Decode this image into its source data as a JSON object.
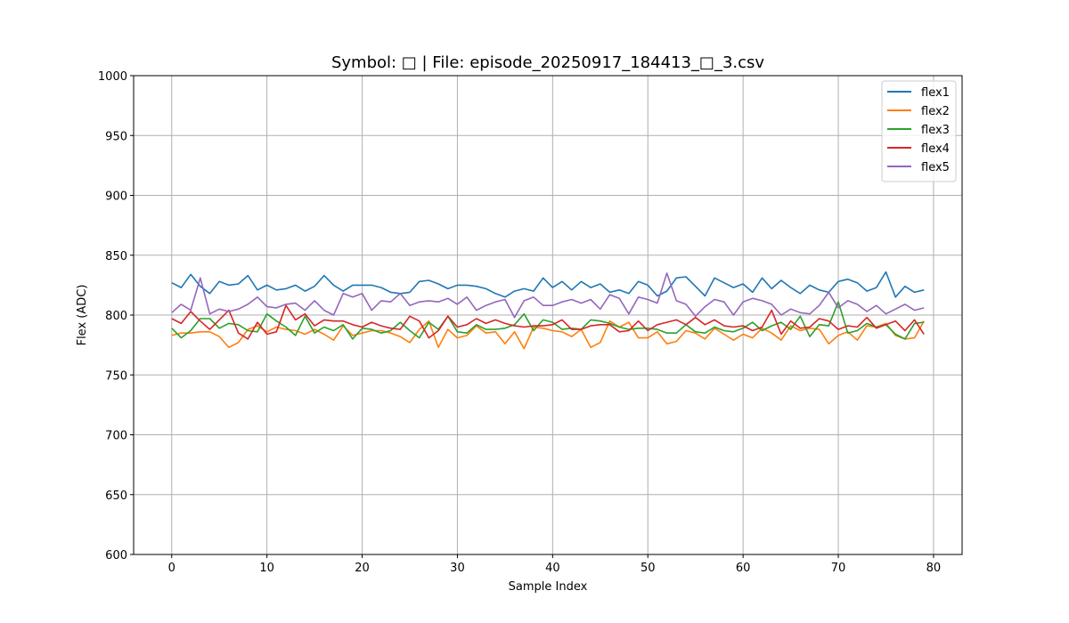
{
  "chart_data": {
    "type": "line",
    "title": "Symbol: □ | File: episode_20250917_184413_□_3.csv",
    "xlabel": "Sample Index",
    "ylabel": "Flex (ADC)",
    "xlim": [
      -4,
      83
    ],
    "ylim": [
      600,
      1000
    ],
    "xticks": [
      0,
      10,
      20,
      30,
      40,
      50,
      60,
      70,
      80
    ],
    "yticks": [
      600,
      650,
      700,
      750,
      800,
      850,
      900,
      950,
      1000
    ],
    "grid": true,
    "legend_position": "top-right",
    "x": [
      0,
      1,
      2,
      3,
      4,
      5,
      6,
      7,
      8,
      9,
      10,
      11,
      12,
      13,
      14,
      15,
      16,
      17,
      18,
      19,
      20,
      21,
      22,
      23,
      24,
      25,
      26,
      27,
      28,
      29,
      30,
      31,
      32,
      33,
      34,
      35,
      36,
      37,
      38,
      39,
      40,
      41,
      42,
      43,
      44,
      45,
      46,
      47,
      48,
      49,
      50,
      51,
      52,
      53,
      54,
      55,
      56,
      57,
      58,
      59,
      60,
      61,
      62,
      63,
      64,
      65,
      66,
      67,
      68,
      69,
      70,
      71,
      72,
      73,
      74,
      75,
      76,
      77,
      78,
      79
    ],
    "series": [
      {
        "name": "flex1",
        "color": "#1f77b4",
        "values": [
          827,
          823,
          834,
          824,
          818,
          828,
          825,
          826,
          833,
          821,
          825,
          821,
          822,
          825,
          820,
          824,
          833,
          825,
          820,
          825,
          825,
          825,
          823,
          819,
          818,
          819,
          828,
          829,
          826,
          822,
          825,
          825,
          824,
          822,
          818,
          815,
          820,
          822,
          820,
          831,
          823,
          828,
          821,
          828,
          823,
          826,
          819,
          821,
          818,
          828,
          825,
          816,
          820,
          831,
          832,
          824,
          816,
          831,
          827,
          823,
          826,
          819,
          831,
          822,
          829,
          823,
          818,
          825,
          821,
          819,
          828,
          830,
          827,
          820,
          823,
          836,
          815,
          824,
          819,
          821
        ]
      },
      {
        "name": "flex2",
        "color": "#ff7f0e",
        "values": [
          783,
          785,
          785,
          786,
          786,
          782,
          773,
          777,
          788,
          791,
          786,
          790,
          788,
          787,
          784,
          788,
          784,
          779,
          791,
          783,
          785,
          787,
          787,
          785,
          782,
          777,
          788,
          795,
          773,
          788,
          781,
          783,
          791,
          785,
          786,
          776,
          786,
          772,
          790,
          789,
          787,
          786,
          782,
          788,
          773,
          777,
          795,
          790,
          794,
          781,
          781,
          786,
          776,
          778,
          787,
          785,
          780,
          789,
          784,
          779,
          784,
          781,
          789,
          785,
          779,
          791,
          787,
          789,
          788,
          776,
          783,
          786,
          779,
          791,
          790,
          793,
          783,
          780,
          781,
          795
        ]
      },
      {
        "name": "flex3",
        "color": "#2ca02c",
        "values": [
          789,
          781,
          787,
          797,
          797,
          789,
          793,
          792,
          787,
          786,
          801,
          795,
          790,
          783,
          799,
          785,
          790,
          787,
          792,
          780,
          789,
          788,
          785,
          787,
          794,
          787,
          781,
          794,
          788,
          799,
          786,
          785,
          792,
          788,
          788,
          789,
          792,
          801,
          787,
          796,
          794,
          788,
          789,
          788,
          796,
          795,
          793,
          790,
          788,
          789,
          789,
          788,
          785,
          785,
          792,
          786,
          785,
          790,
          787,
          786,
          789,
          794,
          787,
          791,
          794,
          788,
          799,
          782,
          792,
          791,
          811,
          785,
          787,
          793,
          790,
          792,
          784,
          780,
          793,
          794
        ]
      },
      {
        "name": "flex4",
        "color": "#d62728",
        "values": [
          797,
          793,
          803,
          795,
          788,
          796,
          804,
          785,
          780,
          794,
          784,
          786,
          808,
          796,
          801,
          791,
          796,
          795,
          795,
          792,
          790,
          794,
          791,
          789,
          788,
          799,
          795,
          781,
          787,
          799,
          790,
          792,
          797,
          793,
          796,
          793,
          791,
          790,
          791,
          791,
          792,
          796,
          788,
          788,
          791,
          792,
          792,
          786,
          787,
          795,
          787,
          792,
          794,
          796,
          792,
          798,
          792,
          796,
          791,
          790,
          791,
          787,
          790,
          804,
          784,
          795,
          789,
          790,
          797,
          795,
          788,
          791,
          790,
          798,
          789,
          792,
          795,
          787,
          796,
          784
        ]
      },
      {
        "name": "flex5",
        "color": "#9467bd",
        "values": [
          802,
          809,
          804,
          831,
          801,
          805,
          803,
          805,
          809,
          815,
          807,
          806,
          809,
          810,
          804,
          812,
          804,
          800,
          818,
          815,
          818,
          804,
          812,
          811,
          818,
          808,
          811,
          812,
          811,
          814,
          809,
          815,
          804,
          808,
          811,
          813,
          798,
          812,
          815,
          808,
          808,
          811,
          813,
          810,
          813,
          805,
          817,
          814,
          801,
          815,
          813,
          810,
          835,
          812,
          809,
          799,
          807,
          813,
          811,
          800,
          811,
          814,
          812,
          809,
          800,
          805,
          802,
          801,
          808,
          819,
          806,
          812,
          809,
          803,
          808,
          801,
          805,
          809,
          804,
          806
        ]
      }
    ]
  }
}
